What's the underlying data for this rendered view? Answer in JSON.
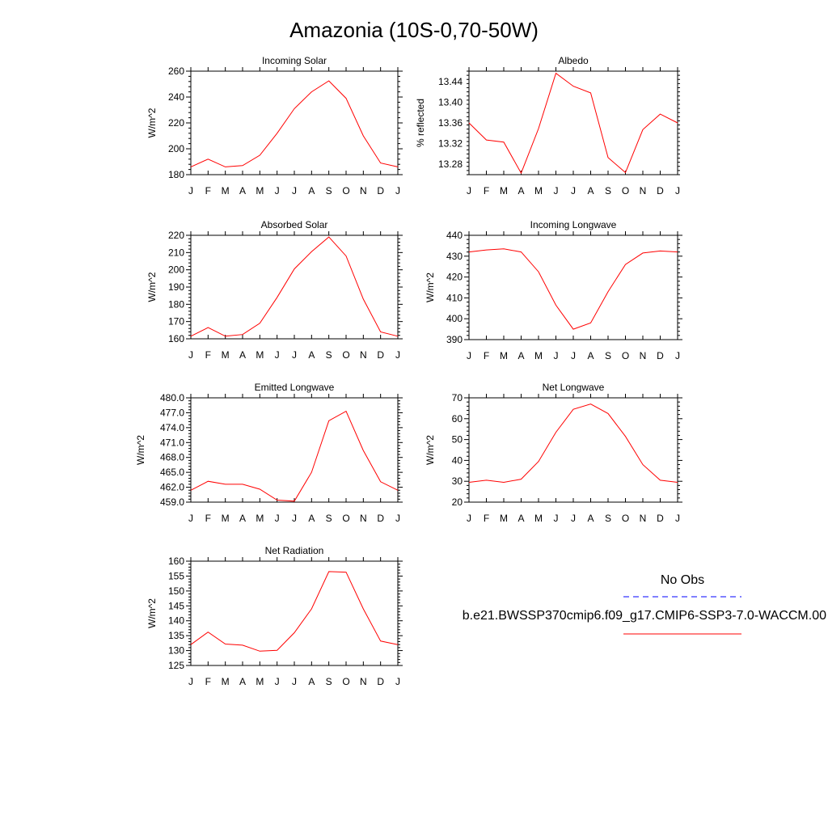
{
  "figure": {
    "title": "Amazonia (10S-0,70-50W)"
  },
  "legend": {
    "obs_label": "No Obs",
    "obs_color": "#0000ff",
    "model_label": "b.e21.BWSSP370cmip6.f09_g17.CMIP6-SSP3-7.0-WACCM.00",
    "model_color": "#ff0000"
  },
  "chart_data": [
    {
      "type": "line",
      "title": "Incoming Solar",
      "ylabel": "W/m^2",
      "categories": [
        "J",
        "F",
        "M",
        "A",
        "M",
        "J",
        "J",
        "A",
        "S",
        "O",
        "N",
        "D",
        "J"
      ],
      "ylim": [
        180,
        260
      ],
      "yticks": [
        180,
        200,
        220,
        240,
        260
      ],
      "ytick_labels": [
        "180",
        "200",
        "220",
        "240",
        "260"
      ],
      "series": [
        {
          "values": [
            186,
            192,
            186,
            187,
            195,
            212,
            231,
            244,
            252.5,
            239,
            210,
            189,
            186
          ],
          "color": "#ff0000"
        }
      ]
    },
    {
      "type": "line",
      "title": "Albedo",
      "ylabel": "% reflected",
      "categories": [
        "J",
        "F",
        "M",
        "A",
        "M",
        "J",
        "J",
        "A",
        "S",
        "O",
        "N",
        "D",
        "J"
      ],
      "ylim": [
        13.26,
        13.46
      ],
      "yticks": [
        13.28,
        13.32,
        13.36,
        13.4,
        13.44
      ],
      "ytick_labels": [
        "13.28",
        "13.32",
        "13.36",
        "13.40",
        "13.44"
      ],
      "series": [
        {
          "values": [
            13.36,
            13.327,
            13.323,
            13.263,
            13.349,
            13.456,
            13.431,
            13.418,
            13.293,
            13.264,
            13.347,
            13.377,
            13.36
          ],
          "color": "#ff0000"
        }
      ]
    },
    {
      "type": "line",
      "title": "Absorbed Solar",
      "ylabel": "W/m^2",
      "categories": [
        "J",
        "F",
        "M",
        "A",
        "M",
        "J",
        "J",
        "A",
        "S",
        "O",
        "N",
        "D",
        "J"
      ],
      "ylim": [
        160,
        220
      ],
      "yticks": [
        160,
        170,
        180,
        190,
        200,
        210,
        220
      ],
      "ytick_labels": [
        "160",
        "170",
        "180",
        "190",
        "200",
        "210",
        "220"
      ],
      "series": [
        {
          "values": [
            161.5,
            166.5,
            161.5,
            162.5,
            169,
            184,
            200.5,
            210.5,
            219,
            208,
            183,
            164,
            161.5
          ],
          "color": "#ff0000"
        }
      ]
    },
    {
      "type": "line",
      "title": "Incoming Longwave",
      "ylabel": "W/m^2",
      "categories": [
        "J",
        "F",
        "M",
        "A",
        "M",
        "J",
        "J",
        "A",
        "S",
        "O",
        "N",
        "D",
        "J"
      ],
      "ylim": [
        390,
        440
      ],
      "yticks": [
        390,
        400,
        410,
        420,
        430,
        440
      ],
      "ytick_labels": [
        "390",
        "400",
        "410",
        "420",
        "430",
        "440"
      ],
      "series": [
        {
          "values": [
            432,
            433,
            433.5,
            432,
            422.5,
            406.5,
            395,
            398,
            413,
            426,
            431.5,
            432.5,
            432
          ],
          "color": "#ff0000"
        }
      ]
    },
    {
      "type": "line",
      "title": "Emitted Longwave",
      "ylabel": "W/m^2",
      "categories": [
        "J",
        "F",
        "M",
        "A",
        "M",
        "J",
        "J",
        "A",
        "S",
        "O",
        "N",
        "D",
        "J"
      ],
      "ylim": [
        459,
        480
      ],
      "yticks": [
        459,
        462,
        465,
        468,
        471,
        474,
        477,
        480
      ],
      "ytick_labels": [
        "459.0",
        "462.0",
        "465.0",
        "468.0",
        "471.0",
        "474.0",
        "477.0",
        "480.0"
      ],
      "series": [
        {
          "values": [
            461.4,
            463.2,
            462.6,
            462.6,
            461.6,
            459.4,
            459.2,
            465,
            475.4,
            477.3,
            469.4,
            463.1,
            461.4
          ],
          "color": "#ff0000"
        }
      ]
    },
    {
      "type": "line",
      "title": "Net Longwave",
      "ylabel": "W/m^2",
      "categories": [
        "J",
        "F",
        "M",
        "A",
        "M",
        "J",
        "J",
        "A",
        "S",
        "O",
        "N",
        "D",
        "J"
      ],
      "ylim": [
        20,
        70
      ],
      "yticks": [
        20,
        30,
        40,
        50,
        60,
        70
      ],
      "ytick_labels": [
        "20",
        "30",
        "40",
        "50",
        "60",
        "70"
      ],
      "series": [
        {
          "values": [
            29.5,
            30.5,
            29.5,
            31,
            39.5,
            53.5,
            64.5,
            67,
            62.5,
            51.5,
            38,
            30.5,
            29.5
          ],
          "color": "#ff0000"
        }
      ]
    },
    {
      "type": "line",
      "title": "Net Radiation",
      "ylabel": "W/m^2",
      "categories": [
        "J",
        "F",
        "M",
        "A",
        "M",
        "J",
        "J",
        "A",
        "S",
        "O",
        "N",
        "D",
        "J"
      ],
      "ylim": [
        125,
        160
      ],
      "yticks": [
        125,
        130,
        135,
        140,
        145,
        150,
        155,
        160
      ],
      "ytick_labels": [
        "125",
        "130",
        "135",
        "140",
        "145",
        "150",
        "155",
        "160"
      ],
      "series": [
        {
          "values": [
            132,
            136.2,
            132.2,
            131.8,
            129.8,
            130.1,
            136,
            144,
            156.5,
            156.3,
            144,
            133.2,
            132
          ],
          "color": "#ff0000"
        }
      ]
    }
  ]
}
